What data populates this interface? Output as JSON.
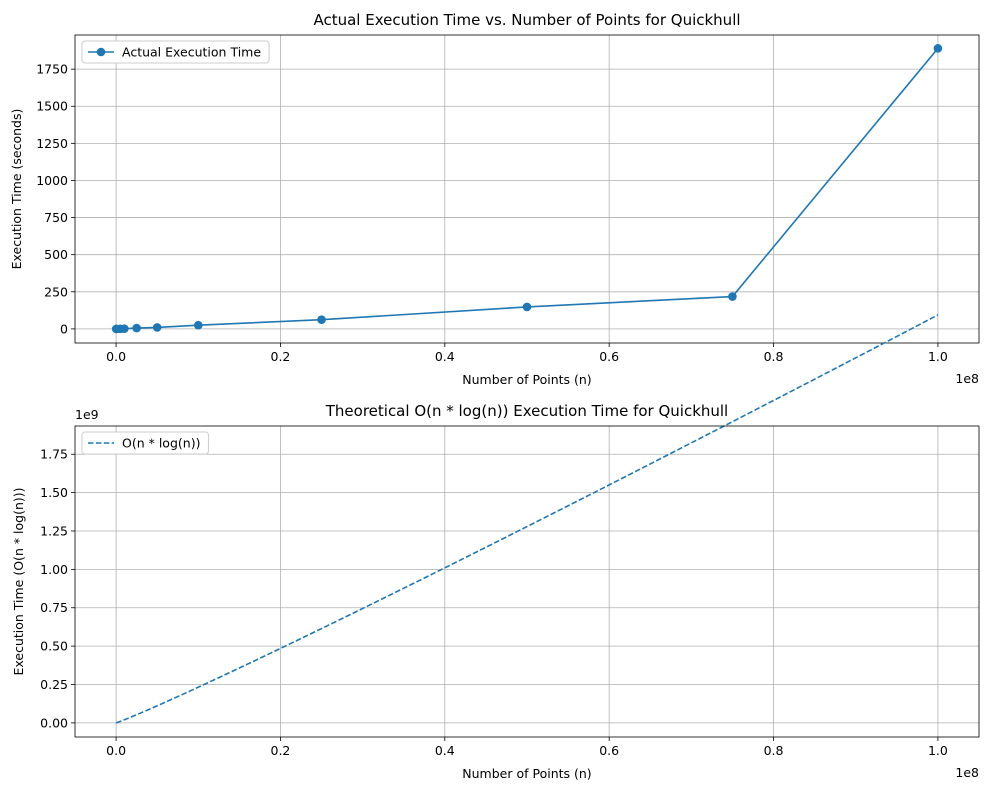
{
  "chart_data": [
    {
      "type": "line",
      "title": "Actual Execution Time vs. Number of Points for Quickhull",
      "xlabel": "Number of Points (n)",
      "ylabel": "Execution Time (seconds)",
      "x_offset_label": "1e8",
      "xlim": [
        -5000000,
        105000000
      ],
      "ylim": [
        -95,
        1980
      ],
      "x_ticks": [
        0,
        20000000,
        40000000,
        60000000,
        80000000,
        100000000
      ],
      "x_tick_labels": [
        "0.0",
        "0.2",
        "0.4",
        "0.6",
        "0.8",
        "1.0"
      ],
      "y_ticks": [
        0,
        250,
        500,
        750,
        1000,
        1250,
        1500,
        1750
      ],
      "y_tick_labels": [
        "0",
        "250",
        "500",
        "750",
        "1000",
        "1250",
        "1500",
        "1750"
      ],
      "grid": true,
      "legend_position": "upper-left",
      "series": [
        {
          "name": "Actual Execution Time",
          "style": "solid",
          "marker": "circle",
          "color": "#1f77b4",
          "x": [
            10000,
            100000,
            500000,
            1000000,
            2500000,
            5000000,
            10000000,
            25000000,
            50000000,
            75000000,
            100000000
          ],
          "y": [
            0.01,
            0.1,
            0.5,
            1.2,
            5.5,
            10,
            25,
            62,
            148,
            218,
            1890
          ]
        }
      ]
    },
    {
      "type": "line",
      "title": "Theoretical O(n * log(n)) Execution Time for Quickhull",
      "xlabel": "Number of Points (n)",
      "ylabel": "Execution Time (O(n * log(n)))",
      "x_offset_label": "1e8",
      "y_offset_label": "1e9",
      "xlim": [
        -5000000,
        105000000
      ],
      "ylim": [
        -92000000,
        1934000000
      ],
      "x_ticks": [
        0,
        20000000,
        40000000,
        60000000,
        80000000,
        100000000
      ],
      "x_tick_labels": [
        "0.0",
        "0.2",
        "0.4",
        "0.6",
        "0.8",
        "1.0"
      ],
      "y_ticks": [
        0,
        250000000,
        500000000,
        750000000,
        1000000000,
        1250000000,
        1500000000,
        1750000000
      ],
      "y_tick_labels": [
        "0.00",
        "0.25",
        "0.50",
        "0.75",
        "1.00",
        "1.25",
        "1.50",
        "1.75"
      ],
      "grid": true,
      "legend_position": "upper-left",
      "series": [
        {
          "name": "O(n * log(n))",
          "style": "dashed",
          "marker": "none",
          "color": "#1f77b4",
          "formula": "n*log2(n)",
          "x_start": 10000,
          "x_end": 100000000
        }
      ]
    }
  ]
}
